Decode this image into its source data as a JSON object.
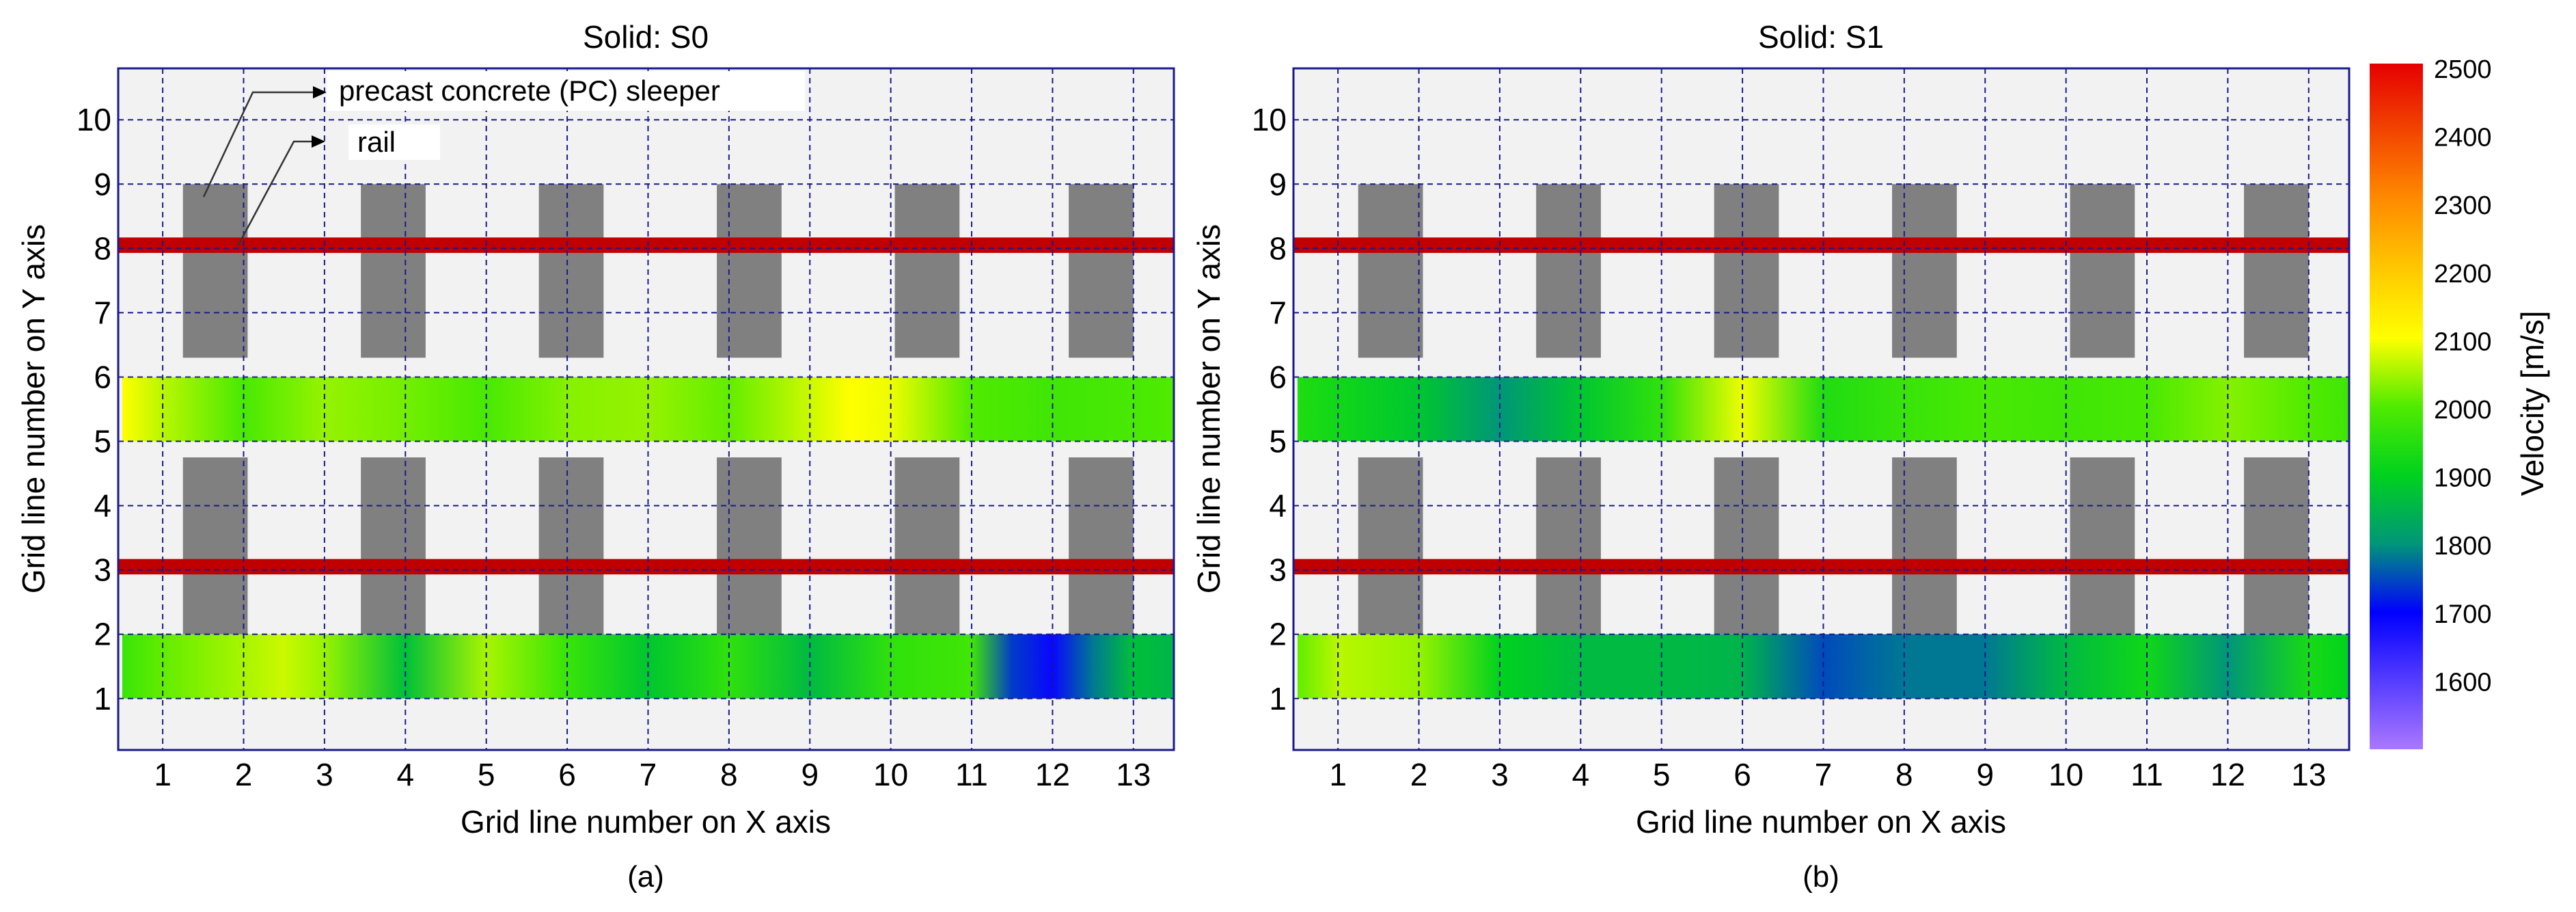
{
  "colors": {
    "panel_bg": "#f2f2f2",
    "grid": "#1a1a8c",
    "frame": "#1a1a8c",
    "sleeper": "#808080",
    "rail": "#c00000"
  },
  "colorbar": {
    "label": "Velocity [m/s]",
    "ticks": [
      "2500",
      "2400",
      "2300",
      "2200",
      "2100",
      "2000",
      "1900",
      "1800",
      "1700",
      "1600"
    ],
    "range": [
      1500,
      2500
    ]
  },
  "chart_data": [
    {
      "type": "heatmap",
      "title": "Solid: S0",
      "caption": "(a)",
      "xlabel": "Grid line number on X axis",
      "ylabel": "Grid line number on Y axis",
      "xlim": [
        0.45,
        13.5
      ],
      "ylim": [
        0.2,
        10.8
      ],
      "x_ticks": [
        "1",
        "2",
        "3",
        "4",
        "5",
        "6",
        "7",
        "8",
        "9",
        "10",
        "11",
        "12",
        "13"
      ],
      "y_ticks": [
        "1",
        "2",
        "3",
        "4",
        "5",
        "6",
        "7",
        "8",
        "9",
        "10"
      ],
      "annotations": [
        {
          "text": "precast concrete (PC) sleeper"
        },
        {
          "text": "rail"
        }
      ],
      "sleepers_x_centers": [
        1.65,
        3.85,
        6.05,
        8.25,
        10.45,
        12.6
      ],
      "sleeper_half_width": 0.4,
      "sleeper_rows": [
        [
          6.3,
          9.0
        ],
        [
          2.0,
          4.75
        ]
      ],
      "rails_y": [
        8.05,
        3.05
      ],
      "bands": [
        {
          "name": "upper",
          "y_range": [
            5.0,
            6.0
          ],
          "x": [
            0.5,
            1,
            2,
            3,
            4,
            5,
            6,
            7,
            8,
            9,
            9.5,
            10,
            11,
            12,
            13,
            13.5
          ],
          "velocity": [
            2100,
            2060,
            1990,
            2040,
            2020,
            1990,
            2030,
            2040,
            2010,
            2070,
            2100,
            2090,
            2000,
            1980,
            1990,
            2000
          ]
        },
        {
          "name": "lower",
          "y_range": [
            1.0,
            2.0
          ],
          "x": [
            0.5,
            1,
            2,
            2.5,
            3,
            4,
            5,
            6,
            7,
            8,
            9,
            10,
            11,
            11.5,
            12,
            12.5,
            13,
            13.5
          ],
          "velocity": [
            1970,
            2010,
            2050,
            2070,
            2040,
            1870,
            2050,
            1970,
            1880,
            1960,
            1860,
            1960,
            1980,
            1740,
            1690,
            1780,
            1870,
            1850
          ]
        }
      ]
    },
    {
      "type": "heatmap",
      "title": "Solid: S1",
      "caption": "(b)",
      "xlabel": "Grid line number on X axis",
      "ylabel": "Grid line number on Y axis",
      "xlim": [
        0.45,
        13.5
      ],
      "ylim": [
        0.2,
        10.8
      ],
      "x_ticks": [
        "1",
        "2",
        "3",
        "4",
        "5",
        "6",
        "7",
        "8",
        "9",
        "10",
        "11",
        "12",
        "13"
      ],
      "y_ticks": [
        "1",
        "2",
        "3",
        "4",
        "5",
        "6",
        "7",
        "8",
        "9",
        "10"
      ],
      "annotations": [],
      "sleepers_x_centers": [
        1.65,
        3.85,
        6.05,
        8.25,
        10.45,
        12.6
      ],
      "sleeper_half_width": 0.4,
      "sleeper_rows": [
        [
          6.3,
          9.0
        ],
        [
          2.0,
          4.75
        ]
      ],
      "rails_y": [
        8.05,
        3.05
      ],
      "bands": [
        {
          "name": "upper",
          "y_range": [
            5.0,
            6.0
          ],
          "x": [
            0.5,
            1,
            2,
            3,
            4,
            5,
            6,
            7,
            8,
            9,
            10,
            11,
            12,
            13,
            13.5
          ],
          "velocity": [
            1940,
            1920,
            1880,
            1800,
            1880,
            1960,
            2090,
            1940,
            1970,
            1990,
            1980,
            1990,
            2030,
            2000,
            1980
          ]
        },
        {
          "name": "lower",
          "y_range": [
            1.0,
            2.0
          ],
          "x": [
            0.5,
            1,
            2,
            3,
            4,
            5,
            6,
            7,
            8,
            9,
            10,
            11,
            12,
            13,
            13.5
          ],
          "velocity": [
            2010,
            2060,
            2040,
            1900,
            1860,
            1860,
            1850,
            1750,
            1780,
            1780,
            1860,
            1920,
            1800,
            1930,
            1900
          ]
        }
      ]
    }
  ]
}
